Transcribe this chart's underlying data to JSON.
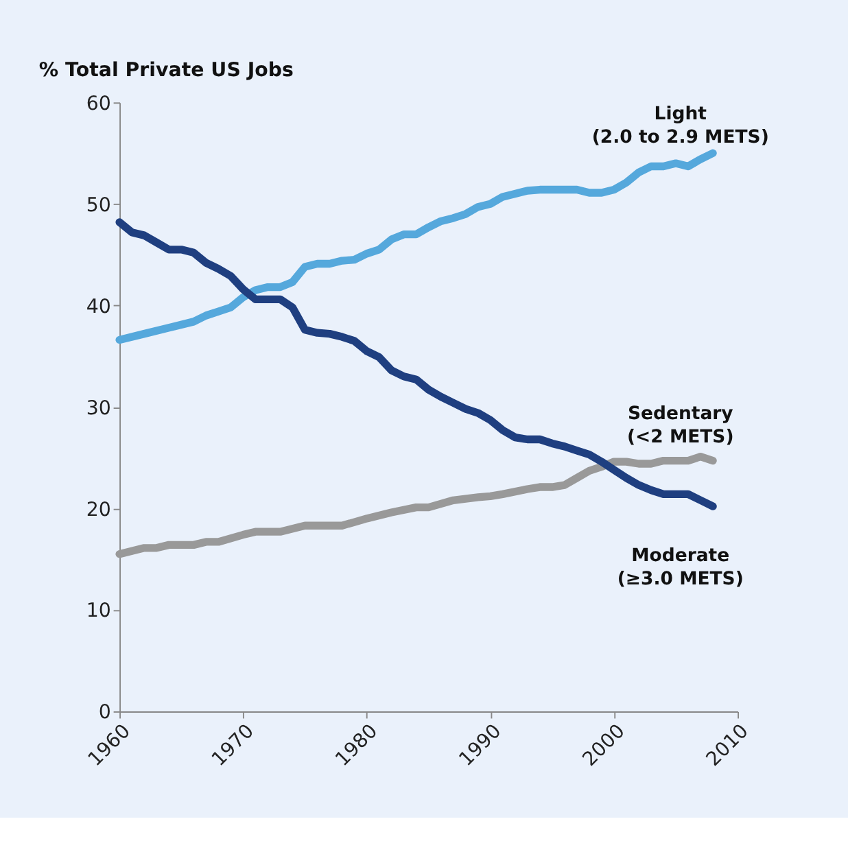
{
  "chart_data": {
    "type": "line",
    "title": "% Total Private US Jobs",
    "xlim": [
      1960,
      2010
    ],
    "xticks": [
      1960,
      1970,
      1980,
      1990,
      2000,
      2010
    ],
    "ylim": [
      0,
      60
    ],
    "yticks": [
      0,
      10,
      20,
      30,
      40,
      50,
      60
    ],
    "grid": false,
    "legend": false,
    "marker": "none",
    "line_style": "solid",
    "series": [
      {
        "name": "Light\n(2.0 to 2.9 METS)",
        "color": "#55a8dc",
        "x": [
          1960,
          1962,
          1964,
          1966,
          1967,
          1968,
          1969,
          1970,
          1971,
          1972,
          1973,
          1974,
          1975,
          1976,
          1977,
          1978,
          1979,
          1980,
          1981,
          1982,
          1983,
          1984,
          1985,
          1986,
          1987,
          1988,
          1989,
          1990,
          1991,
          1992,
          1993,
          1994,
          1995,
          1996,
          1997,
          1998,
          1999,
          2000,
          2001,
          2002,
          2003,
          2004,
          2005,
          2006,
          2007,
          2008
        ],
        "values": [
          36.6,
          37.2,
          37.8,
          38.4,
          39.0,
          39.4,
          39.8,
          40.8,
          41.5,
          41.8,
          41.8,
          42.3,
          43.8,
          44.1,
          44.1,
          44.4,
          44.5,
          45.1,
          45.5,
          46.5,
          47.0,
          47.0,
          47.7,
          48.3,
          48.6,
          49.0,
          49.7,
          50.0,
          50.7,
          51.0,
          51.3,
          51.4,
          51.4,
          51.4,
          51.4,
          51.1,
          51.1,
          51.4,
          52.1,
          53.1,
          53.7,
          53.7,
          54.0,
          53.7,
          54.4,
          55.0
        ]
      },
      {
        "name": "Sedentary\n(<2 METS)",
        "color": "#999999",
        "x": [
          1960,
          1962,
          1963,
          1964,
          1966,
          1967,
          1968,
          1970,
          1971,
          1973,
          1975,
          1977,
          1978,
          1980,
          1982,
          1984,
          1985,
          1987,
          1989,
          1990,
          1991,
          1993,
          1994,
          1995,
          1996,
          1997,
          1998,
          1999,
          2000,
          2001,
          2002,
          2003,
          2004,
          2005,
          2006,
          2007,
          2008
        ],
        "values": [
          15.5,
          16.1,
          16.1,
          16.4,
          16.4,
          16.7,
          16.7,
          17.4,
          17.7,
          17.7,
          18.3,
          18.3,
          18.3,
          19.0,
          19.6,
          20.1,
          20.1,
          20.8,
          21.1,
          21.2,
          21.4,
          21.9,
          22.1,
          22.1,
          22.3,
          23.0,
          23.7,
          24.1,
          24.6,
          24.6,
          24.4,
          24.4,
          24.7,
          24.7,
          24.7,
          25.1,
          24.7
        ]
      },
      {
        "name": "Moderate\n(≥3.0 METS)",
        "color": "#1f3f80",
        "x": [
          1960,
          1961,
          1962,
          1963,
          1964,
          1965,
          1966,
          1967,
          1968,
          1969,
          1970,
          1971,
          1972,
          1973,
          1974,
          1975,
          1976,
          1977,
          1978,
          1979,
          1980,
          1981,
          1982,
          1983,
          1984,
          1985,
          1986,
          1987,
          1988,
          1989,
          1990,
          1991,
          1992,
          1993,
          1994,
          1995,
          1996,
          1997,
          1998,
          1999,
          2000,
          2001,
          2002,
          2003,
          2004,
          2005,
          2006,
          2007,
          2008
        ],
        "values": [
          48.2,
          47.2,
          46.9,
          46.2,
          45.5,
          45.5,
          45.2,
          44.2,
          43.6,
          42.9,
          41.6,
          40.6,
          40.6,
          40.6,
          39.8,
          37.6,
          37.3,
          37.2,
          36.9,
          36.5,
          35.5,
          34.9,
          33.6,
          33.0,
          32.7,
          31.7,
          31.0,
          30.4,
          29.8,
          29.4,
          28.7,
          27.7,
          27.0,
          26.8,
          26.8,
          26.4,
          26.1,
          25.7,
          25.3,
          24.6,
          23.8,
          23.0,
          22.3,
          21.8,
          21.4,
          21.4,
          21.4,
          20.8,
          20.2
        ]
      }
    ]
  }
}
